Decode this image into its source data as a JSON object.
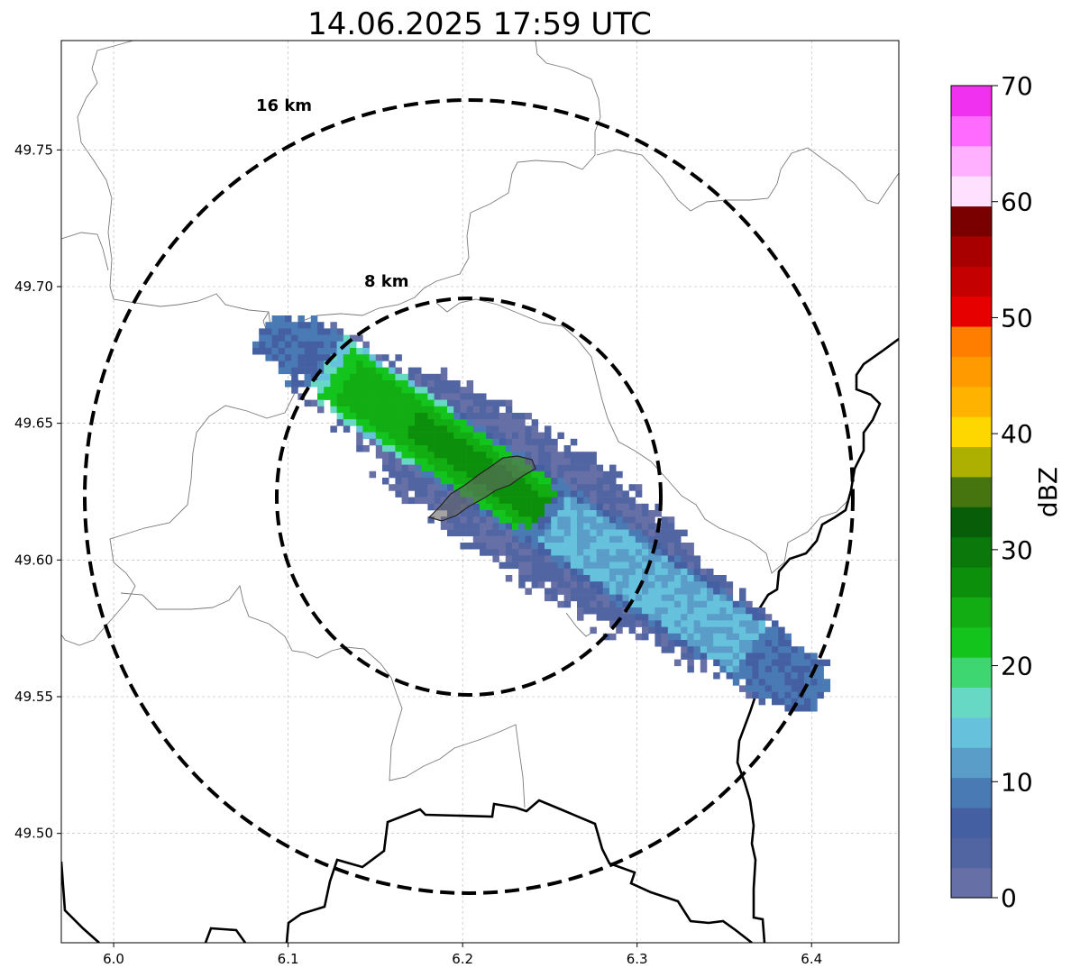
{
  "title": "14.06.2025 17:59 UTC",
  "map": {
    "x_ticks": [
      {
        "label": "6.0",
        "value": 6.0
      },
      {
        "label": "6.1",
        "value": 6.1
      },
      {
        "label": "6.2",
        "value": 6.2
      },
      {
        "label": "6.3",
        "value": 6.3
      },
      {
        "label": "6.4",
        "value": 6.4
      }
    ],
    "y_ticks": [
      {
        "label": "49.75",
        "value": 49.75
      },
      {
        "label": "49.70",
        "value": 49.7
      },
      {
        "label": "49.65",
        "value": 49.65
      },
      {
        "label": "49.60",
        "value": 49.6
      },
      {
        "label": "49.55",
        "value": 49.55
      },
      {
        "label": "49.50",
        "value": 49.5
      }
    ],
    "lon_range": [
      5.97,
      6.45
    ],
    "lat_range": [
      49.46,
      49.79
    ],
    "grid": true,
    "radar_center": {
      "lon": 6.204,
      "lat": 49.623
    },
    "rings": [
      {
        "label": "8 km",
        "radius_km": 8
      },
      {
        "label": "16 km",
        "radius_km": 16
      }
    ]
  },
  "colorbar": {
    "label": "dBZ",
    "min": 0,
    "max": 70,
    "ticks": [
      {
        "label": "0",
        "value": 0
      },
      {
        "label": "10",
        "value": 10
      },
      {
        "label": "20",
        "value": 20
      },
      {
        "label": "30",
        "value": 30
      },
      {
        "label": "40",
        "value": 40
      },
      {
        "label": "50",
        "value": 50
      },
      {
        "label": "60",
        "value": 60
      },
      {
        "label": "70",
        "value": 70
      }
    ],
    "colors": [
      "#6670a6",
      "#5265a3",
      "#4460a3",
      "#4a7ab3",
      "#5a9dc9",
      "#66c1dd",
      "#66d8c4",
      "#3ed670",
      "#12c41c",
      "#12ad12",
      "#0c900c",
      "#0a780a",
      "#085e08",
      "#467510",
      "#aeb000",
      "#ffd700",
      "#ffb200",
      "#ff9a00",
      "#ff7e00",
      "#e60000",
      "#c40000",
      "#a80000",
      "#7a0000",
      "#ffe0ff",
      "#ffb0ff",
      "#ff6bff",
      "#f032f0"
    ]
  }
}
